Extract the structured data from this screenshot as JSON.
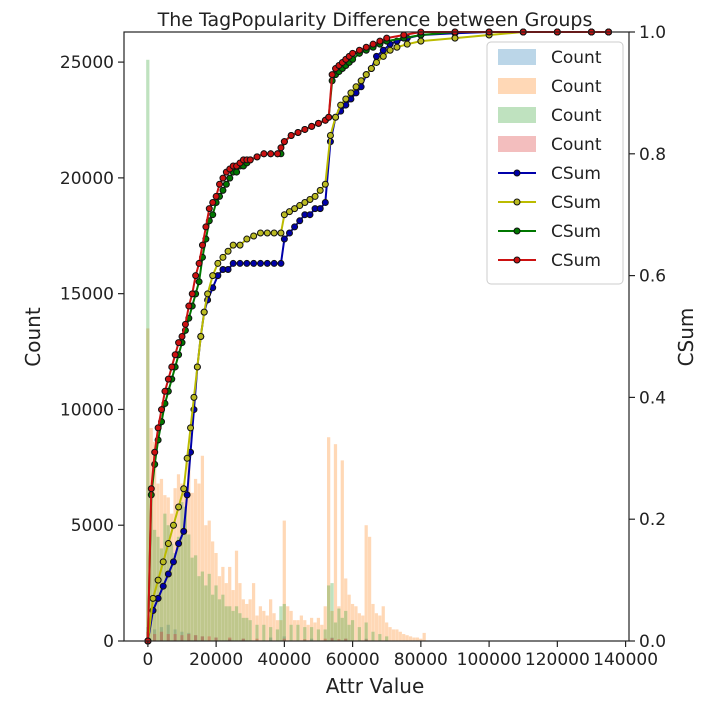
{
  "chart_data": {
    "type": "bar",
    "title": "The TagPopularity Difference between Groups",
    "xlabel": "Attr Value",
    "ylabel": "Count",
    "y2label": "CSum",
    "xlim": [
      -7000,
      141000
    ],
    "ylim": [
      0,
      26300
    ],
    "y2lim": [
      0,
      1.0
    ],
    "xticks": [
      0,
      20000,
      40000,
      60000,
      80000,
      100000,
      120000,
      140000
    ],
    "yticks": [
      0,
      5000,
      10000,
      15000,
      20000,
      25000
    ],
    "y2ticks": [
      0,
      0.2,
      0.4,
      0.6,
      0.8,
      1.0
    ],
    "legend_position": "upper right",
    "histograms": [
      {
        "name": "Count",
        "color": "#1f77b4",
        "x": [
          0,
          2000,
          4000,
          6000,
          8000,
          10000,
          12000,
          14000,
          16000,
          20000,
          24000,
          28000,
          36000,
          40000,
          48000,
          54000,
          58000,
          64000
        ],
        "values": [
          600,
          500,
          600,
          700,
          500,
          400,
          350,
          250,
          200,
          150,
          100,
          100,
          150,
          200,
          100,
          150,
          100,
          100
        ]
      },
      {
        "name": "Count",
        "color": "#ff7f0e",
        "x": [
          0,
          1000,
          2000,
          3000,
          4000,
          5000,
          6000,
          7000,
          8000,
          9000,
          10000,
          11000,
          12000,
          13000,
          14000,
          15000,
          16000,
          17000,
          18000,
          19000,
          20000,
          21000,
          22000,
          23000,
          24000,
          25000,
          26000,
          27000,
          28000,
          29000,
          30000,
          31000,
          32000,
          33000,
          34000,
          35000,
          36000,
          37000,
          38000,
          39000,
          40000,
          41000,
          42000,
          43000,
          44000,
          45000,
          46000,
          47000,
          48000,
          49000,
          50000,
          51000,
          52000,
          53000,
          54000,
          55000,
          56000,
          57000,
          58000,
          59000,
          60000,
          61000,
          62000,
          63000,
          64000,
          65000,
          66000,
          67000,
          68000,
          69000,
          70000,
          71000,
          72000,
          73000,
          74000,
          75000,
          76000,
          77000,
          78000,
          79000,
          80000,
          81000
        ],
        "values": [
          13500,
          9200,
          8600,
          6800,
          7000,
          6300,
          6200,
          5500,
          6600,
          7200,
          6800,
          6600,
          7700,
          6400,
          7000,
          6800,
          8000,
          5000,
          5200,
          4300,
          3800,
          2800,
          3200,
          2500,
          3200,
          2200,
          3900,
          2500,
          1800,
          1600,
          1800,
          2500,
          1100,
          1500,
          1300,
          1100,
          1800,
          1200,
          900,
          900,
          5200,
          1500,
          1300,
          900,
          900,
          1100,
          900,
          700,
          1000,
          800,
          1000,
          700,
          1500,
          8800,
          1300,
          8500,
          1500,
          7800,
          2700,
          2000,
          1600,
          1500,
          1200,
          1100,
          5000,
          4500,
          1600,
          1200,
          1100,
          1500,
          800,
          600,
          500,
          500,
          400,
          300,
          250,
          200,
          150,
          150,
          100,
          350
        ]
      },
      {
        "name": "Count",
        "color": "#2ca02c",
        "x": [
          0,
          1000,
          2000,
          3000,
          4000,
          5000,
          6000,
          7000,
          8000,
          9000,
          10000,
          11000,
          12000,
          13000,
          14000,
          15000,
          16000,
          17000,
          18000,
          19000,
          20000,
          21000,
          22000,
          23000,
          24000,
          25000,
          26000,
          27000,
          28000,
          29000,
          30000,
          32000,
          34000,
          36000,
          38000,
          39000,
          40000,
          42000,
          44000,
          46000,
          48000,
          50000,
          52000,
          53000,
          54000,
          55000,
          56000,
          57000,
          58000,
          59000,
          60000,
          62000,
          64000,
          66000,
          68000,
          70000
        ],
        "values": [
          25100,
          6700,
          4800,
          4500,
          4000,
          5500,
          5000,
          4200,
          3800,
          4500,
          6000,
          5800,
          4600,
          3600,
          3700,
          2800,
          3000,
          2400,
          2900,
          2000,
          2400,
          1800,
          2000,
          1500,
          1500,
          1300,
          1500,
          1200,
          1000,
          1000,
          900,
          700,
          700,
          600,
          500,
          1500,
          1600,
          700,
          700,
          600,
          600,
          500,
          500,
          2400,
          2500,
          800,
          1400,
          1000,
          1300,
          700,
          900,
          600,
          800,
          400,
          300,
          200
        ]
      },
      {
        "name": "Count",
        "color": "#d62728",
        "x": [
          0,
          2000,
          4000,
          6000,
          8000,
          10000,
          12000,
          14000,
          16000,
          18000,
          20000,
          24000,
          28000,
          32000,
          40000,
          46000,
          52000,
          54000,
          56000,
          58000,
          64000
        ],
        "values": [
          400,
          300,
          400,
          300,
          300,
          250,
          300,
          250,
          200,
          200,
          150,
          150,
          100,
          100,
          100,
          80,
          100,
          120,
          80,
          100,
          60
        ]
      }
    ],
    "csum_series": [
      {
        "name": "CSum",
        "color": "#0000aa",
        "marker_face": "#0000aa",
        "x": [
          0,
          1500,
          3000,
          4500,
          6000,
          7500,
          9000,
          10500,
          11500,
          12500,
          13500,
          14500,
          15500,
          16500,
          17500,
          19000,
          20500,
          22000,
          23500,
          25000,
          27000,
          29000,
          31000,
          33000,
          35000,
          37000,
          39000,
          40000,
          41500,
          43000,
          44500,
          46000,
          47500,
          49000,
          50500,
          52000,
          53500,
          55000,
          56500,
          58000,
          59500,
          61000,
          62500,
          64000,
          65500,
          67000,
          69000,
          71000,
          73000,
          76000,
          80000,
          90000,
          100000,
          110000,
          120000,
          130000,
          135000
        ],
        "values": [
          0.0,
          0.05,
          0.07,
          0.09,
          0.11,
          0.13,
          0.16,
          0.18,
          0.24,
          0.31,
          0.38,
          0.45,
          0.5,
          0.54,
          0.56,
          0.58,
          0.6,
          0.61,
          0.61,
          0.62,
          0.62,
          0.62,
          0.62,
          0.62,
          0.62,
          0.62,
          0.62,
          0.66,
          0.67,
          0.68,
          0.69,
          0.7,
          0.7,
          0.71,
          0.71,
          0.72,
          0.82,
          0.86,
          0.87,
          0.88,
          0.89,
          0.9,
          0.91,
          0.93,
          0.94,
          0.96,
          0.97,
          0.98,
          0.985,
          0.99,
          0.995,
          0.998,
          1.0,
          1.0,
          1.0,
          1.0,
          1.0
        ]
      },
      {
        "name": "CSum",
        "color": "#bbbb00",
        "marker_face": "#bbbb22",
        "x": [
          0,
          1500,
          3000,
          4500,
          6000,
          7500,
          9000,
          10500,
          11500,
          12500,
          13500,
          14500,
          15500,
          16500,
          17500,
          19000,
          20500,
          22000,
          23500,
          25000,
          27000,
          29000,
          31000,
          33000,
          35000,
          37000,
          39000,
          40000,
          41500,
          43000,
          44500,
          46000,
          47500,
          49000,
          50500,
          52000,
          53500,
          55000,
          56500,
          58000,
          59500,
          61000,
          62500,
          64000,
          65500,
          67000,
          69000,
          71000,
          73000,
          76000,
          80000,
          90000,
          100000,
          110000,
          120000,
          130000,
          135000
        ],
        "values": [
          0.0,
          0.07,
          0.1,
          0.13,
          0.16,
          0.19,
          0.22,
          0.25,
          0.3,
          0.35,
          0.4,
          0.45,
          0.5,
          0.54,
          0.57,
          0.6,
          0.62,
          0.63,
          0.64,
          0.65,
          0.65,
          0.66,
          0.665,
          0.67,
          0.67,
          0.67,
          0.67,
          0.7,
          0.705,
          0.71,
          0.715,
          0.72,
          0.725,
          0.73,
          0.74,
          0.75,
          0.83,
          0.86,
          0.88,
          0.89,
          0.9,
          0.91,
          0.92,
          0.93,
          0.94,
          0.95,
          0.96,
          0.97,
          0.975,
          0.98,
          0.985,
          0.99,
          0.995,
          1.0,
          1.0,
          1.0,
          1.0
        ]
      },
      {
        "name": "CSum",
        "color": "#007700",
        "marker_face": "#007700",
        "x": [
          0,
          1000,
          2000,
          3000,
          4000,
          5000,
          6000,
          7000,
          8000,
          9000,
          10000,
          11000,
          12000,
          13000,
          14000,
          15000,
          16000,
          17000,
          18000,
          19000,
          20000,
          21000,
          22000,
          23000,
          24000,
          25000,
          26000,
          27000,
          28000,
          29000,
          30000,
          32000,
          34000,
          36000,
          38000,
          39000,
          40000,
          42000,
          44000,
          46000,
          48000,
          50000,
          52000,
          53000,
          54000,
          55000,
          56000,
          57000,
          58000,
          59000,
          60000,
          62000,
          64000,
          66000,
          68000,
          70000,
          75000,
          80000,
          90000,
          100000,
          110000,
          120000,
          130000,
          135000
        ],
        "values": [
          0.0,
          0.24,
          0.29,
          0.33,
          0.36,
          0.39,
          0.41,
          0.43,
          0.45,
          0.47,
          0.49,
          0.51,
          0.53,
          0.55,
          0.57,
          0.59,
          0.63,
          0.66,
          0.69,
          0.7,
          0.72,
          0.73,
          0.74,
          0.75,
          0.76,
          0.77,
          0.77,
          0.78,
          0.78,
          0.785,
          0.79,
          0.795,
          0.8,
          0.8,
          0.8,
          0.8,
          0.82,
          0.83,
          0.835,
          0.84,
          0.845,
          0.85,
          0.855,
          0.86,
          0.92,
          0.93,
          0.935,
          0.94,
          0.945,
          0.95,
          0.955,
          0.965,
          0.97,
          0.975,
          0.98,
          0.985,
          0.99,
          0.995,
          1.0,
          1.0,
          1.0,
          1.0,
          1.0,
          1.0
        ]
      },
      {
        "name": "CSum",
        "color": "#cc1111",
        "marker_face": "#cc1111",
        "x": [
          0,
          1000,
          2000,
          3000,
          4000,
          5000,
          6000,
          7000,
          8000,
          9000,
          10000,
          11000,
          12000,
          13000,
          14000,
          15000,
          16000,
          17000,
          18000,
          19000,
          20000,
          21000,
          22000,
          23000,
          24000,
          25000,
          26000,
          27000,
          28000,
          29000,
          30000,
          32000,
          34000,
          36000,
          38000,
          39000,
          40000,
          42000,
          44000,
          46000,
          48000,
          50000,
          52000,
          53000,
          54000,
          55000,
          56000,
          57000,
          58000,
          59000,
          60000,
          62000,
          64000,
          66000,
          68000,
          70000,
          75000,
          80000,
          90000,
          100000,
          110000,
          120000,
          130000,
          135000
        ],
        "values": [
          0.0,
          0.25,
          0.31,
          0.35,
          0.38,
          0.41,
          0.43,
          0.45,
          0.47,
          0.49,
          0.5,
          0.52,
          0.55,
          0.57,
          0.6,
          0.62,
          0.65,
          0.68,
          0.71,
          0.72,
          0.73,
          0.75,
          0.76,
          0.77,
          0.775,
          0.78,
          0.78,
          0.785,
          0.79,
          0.79,
          0.79,
          0.795,
          0.8,
          0.8,
          0.8,
          0.81,
          0.82,
          0.83,
          0.835,
          0.84,
          0.845,
          0.85,
          0.855,
          0.86,
          0.93,
          0.94,
          0.945,
          0.95,
          0.955,
          0.96,
          0.965,
          0.97,
          0.975,
          0.98,
          0.985,
          0.99,
          0.995,
          1.0,
          1.0,
          1.0,
          1.0,
          1.0,
          1.0,
          1.0
        ]
      }
    ]
  }
}
